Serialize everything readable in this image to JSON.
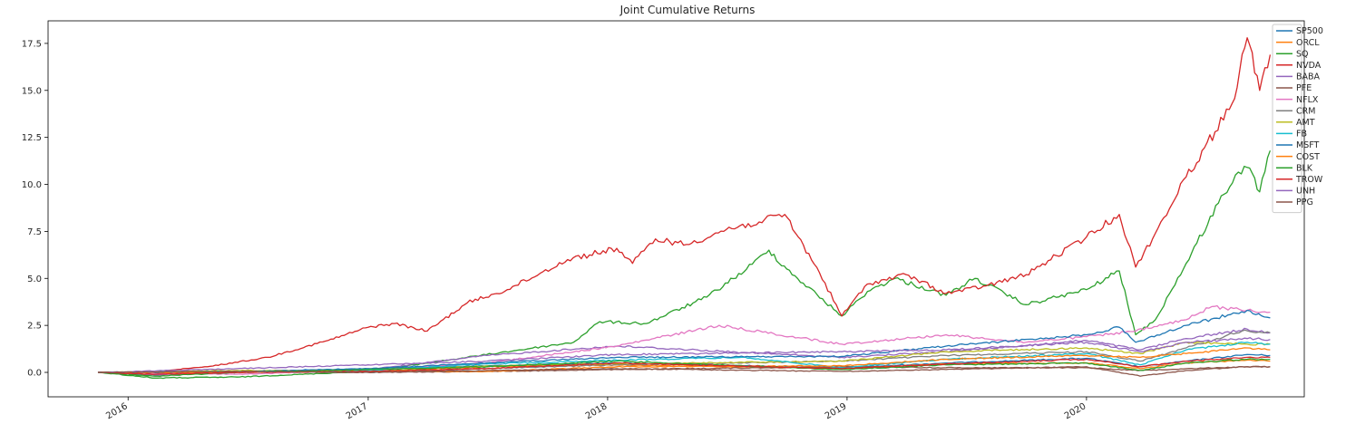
{
  "chart_data": {
    "type": "line",
    "title": "Joint Cumulative Returns",
    "xlabel": "",
    "ylabel": "",
    "xlim": [
      "2015-09-01",
      "2020-11-28"
    ],
    "ylim": [
      -1.3,
      18.7
    ],
    "x_ticks": [
      "2016",
      "2017",
      "2018",
      "2019",
      "2020"
    ],
    "y_ticks": [
      "0.0",
      "2.5",
      "5.0",
      "7.5",
      "10.0",
      "12.5",
      "15.0",
      "17.5"
    ],
    "legend_position": "top-right",
    "grid": false,
    "series": [
      {
        "name": "SP500",
        "color": "#1f77b4",
        "points": [
          [
            "2015-11-16",
            0
          ],
          [
            "2016-06-15",
            0.05
          ],
          [
            "2017-01-01",
            0.2
          ],
          [
            "2017-07-01",
            0.35
          ],
          [
            "2018-01-15",
            0.5
          ],
          [
            "2018-12-24",
            0.25
          ],
          [
            "2019-06-01",
            0.5
          ],
          [
            "2020-01-01",
            0.75
          ],
          [
            "2020-03-23",
            0.3
          ],
          [
            "2020-06-01",
            0.6
          ],
          [
            "2020-09-02",
            0.95
          ],
          [
            "2020-10-07",
            0.9
          ]
        ]
      },
      {
        "name": "ORCL",
        "color": "#ff7f0e",
        "points": [
          [
            "2015-11-16",
            0
          ],
          [
            "2016-02-11",
            -0.1
          ],
          [
            "2016-06-15",
            0.05
          ],
          [
            "2017-01-01",
            0.05
          ],
          [
            "2017-07-01",
            0.3
          ],
          [
            "2018-01-15",
            0.4
          ],
          [
            "2018-12-24",
            0.2
          ],
          [
            "2019-06-01",
            0.45
          ],
          [
            "2020-01-01",
            0.5
          ],
          [
            "2020-03-23",
            0.2
          ],
          [
            "2020-06-01",
            0.5
          ],
          [
            "2020-09-02",
            0.65
          ],
          [
            "2020-10-07",
            0.6
          ]
        ]
      },
      {
        "name": "SQ",
        "color": "#2ca02c",
        "points": [
          [
            "2015-11-19",
            0
          ],
          [
            "2016-02-11",
            -0.3
          ],
          [
            "2016-06-15",
            -0.25
          ],
          [
            "2017-01-01",
            0.05
          ],
          [
            "2017-06-01",
            0.8
          ],
          [
            "2017-11-10",
            1.6
          ],
          [
            "2017-12-20",
            2.7
          ],
          [
            "2018-03-01",
            2.6
          ],
          [
            "2018-06-01",
            4.0
          ],
          [
            "2018-08-01",
            5.5
          ],
          [
            "2018-09-04",
            6.5
          ],
          [
            "2018-10-01",
            5.5
          ],
          [
            "2018-12-24",
            3.0
          ],
          [
            "2019-02-01",
            4.3
          ],
          [
            "2019-03-15",
            5.0
          ],
          [
            "2019-06-01",
            4.1
          ],
          [
            "2019-07-15",
            5.0
          ],
          [
            "2019-10-01",
            3.6
          ],
          [
            "2020-01-01",
            4.4
          ],
          [
            "2020-02-20",
            5.4
          ],
          [
            "2020-03-16",
            2.0
          ],
          [
            "2020-04-15",
            2.8
          ],
          [
            "2020-06-01",
            5.8
          ],
          [
            "2020-07-20",
            9.0
          ],
          [
            "2020-08-15",
            10.5
          ],
          [
            "2020-09-02",
            10.9
          ],
          [
            "2020-09-21",
            9.6
          ],
          [
            "2020-10-07",
            11.8
          ]
        ]
      },
      {
        "name": "NVDA",
        "color": "#d62728",
        "points": [
          [
            "2015-11-16",
            0
          ],
          [
            "2016-01-15",
            -0.05
          ],
          [
            "2016-05-01",
            0.3
          ],
          [
            "2016-08-01",
            0.8
          ],
          [
            "2016-11-01",
            1.7
          ],
          [
            "2017-01-01",
            2.4
          ],
          [
            "2017-02-10",
            2.6
          ],
          [
            "2017-04-01",
            2.2
          ],
          [
            "2017-06-01",
            3.7
          ],
          [
            "2017-08-01",
            4.4
          ],
          [
            "2017-11-01",
            6.0
          ],
          [
            "2018-01-15",
            6.6
          ],
          [
            "2018-02-08",
            5.8
          ],
          [
            "2018-03-15",
            7.1
          ],
          [
            "2018-05-01",
            6.8
          ],
          [
            "2018-07-01",
            7.6
          ],
          [
            "2018-08-20",
            8.0
          ],
          [
            "2018-09-28",
            8.4
          ],
          [
            "2018-11-20",
            5.3
          ],
          [
            "2018-12-24",
            3.0
          ],
          [
            "2019-02-01",
            4.7
          ],
          [
            "2019-04-01",
            5.2
          ],
          [
            "2019-06-01",
            4.2
          ],
          [
            "2019-08-01",
            4.6
          ],
          [
            "2019-10-01",
            5.2
          ],
          [
            "2020-01-01",
            7.2
          ],
          [
            "2020-02-20",
            8.4
          ],
          [
            "2020-03-16",
            5.6
          ],
          [
            "2020-04-15",
            7.4
          ],
          [
            "2020-06-01",
            10.4
          ],
          [
            "2020-07-15",
            12.8
          ],
          [
            "2020-08-10",
            14.3
          ],
          [
            "2020-09-02",
            17.8
          ],
          [
            "2020-09-21",
            15.0
          ],
          [
            "2020-10-07",
            16.9
          ]
        ]
      },
      {
        "name": "BABA",
        "color": "#9467bd",
        "points": [
          [
            "2015-11-16",
            0
          ],
          [
            "2016-02-11",
            -0.15
          ],
          [
            "2016-06-15",
            0.05
          ],
          [
            "2017-01-01",
            0.15
          ],
          [
            "2017-07-01",
            0.9
          ],
          [
            "2018-01-15",
            1.4
          ],
          [
            "2018-12-24",
            0.8
          ],
          [
            "2019-06-01",
            1.1
          ],
          [
            "2020-01-01",
            1.7
          ],
          [
            "2020-03-23",
            1.2
          ],
          [
            "2020-06-01",
            1.8
          ],
          [
            "2020-09-02",
            2.3
          ],
          [
            "2020-10-07",
            2.1
          ]
        ]
      },
      {
        "name": "PFE",
        "color": "#8c564b",
        "points": [
          [
            "2015-11-16",
            0
          ],
          [
            "2016-06-15",
            0.05
          ],
          [
            "2017-01-01",
            0.0
          ],
          [
            "2017-07-01",
            0.05
          ],
          [
            "2018-01-15",
            0.15
          ],
          [
            "2018-12-24",
            0.3
          ],
          [
            "2019-06-01",
            0.25
          ],
          [
            "2020-01-01",
            0.25
          ],
          [
            "2020-03-23",
            0.1
          ],
          [
            "2020-06-01",
            0.2
          ],
          [
            "2020-09-02",
            0.3
          ],
          [
            "2020-10-07",
            0.3
          ]
        ]
      },
      {
        "name": "NFLX",
        "color": "#e377c2",
        "points": [
          [
            "2015-11-16",
            0
          ],
          [
            "2016-06-15",
            -0.1
          ],
          [
            "2017-01-01",
            0.1
          ],
          [
            "2017-07-01",
            0.5
          ],
          [
            "2018-01-15",
            1.4
          ],
          [
            "2018-06-20",
            2.5
          ],
          [
            "2018-12-24",
            1.5
          ],
          [
            "2019-06-01",
            2.0
          ],
          [
            "2019-10-01",
            1.6
          ],
          [
            "2020-01-01",
            1.9
          ],
          [
            "2020-03-16",
            2.2
          ],
          [
            "2020-06-01",
            2.8
          ],
          [
            "2020-07-10",
            3.5
          ],
          [
            "2020-09-02",
            3.3
          ],
          [
            "2020-10-07",
            3.2
          ]
        ]
      },
      {
        "name": "CRM",
        "color": "#7f7f7f",
        "points": [
          [
            "2015-11-16",
            0
          ],
          [
            "2016-06-15",
            0.05
          ],
          [
            "2017-01-01",
            0.0
          ],
          [
            "2017-07-01",
            0.2
          ],
          [
            "2018-01-15",
            0.4
          ],
          [
            "2018-12-24",
            0.6
          ],
          [
            "2019-06-01",
            0.9
          ],
          [
            "2020-01-01",
            1.1
          ],
          [
            "2020-03-23",
            0.6
          ],
          [
            "2020-06-01",
            1.3
          ],
          [
            "2020-08-25",
            2.2
          ],
          [
            "2020-10-07",
            2.1
          ]
        ]
      },
      {
        "name": "AMT",
        "color": "#bcbd22",
        "points": [
          [
            "2015-11-16",
            0
          ],
          [
            "2016-06-15",
            0.1
          ],
          [
            "2017-01-01",
            0.05
          ],
          [
            "2017-07-01",
            0.35
          ],
          [
            "2018-01-15",
            0.45
          ],
          [
            "2018-12-24",
            0.6
          ],
          [
            "2019-06-01",
            1.1
          ],
          [
            "2020-01-01",
            1.3
          ],
          [
            "2020-03-23",
            1.0
          ],
          [
            "2020-06-01",
            1.6
          ],
          [
            "2020-09-02",
            1.5
          ],
          [
            "2020-10-07",
            1.5
          ]
        ]
      },
      {
        "name": "FB",
        "color": "#17becf",
        "points": [
          [
            "2015-11-16",
            0
          ],
          [
            "2016-06-15",
            0.05
          ],
          [
            "2017-01-01",
            0.1
          ],
          [
            "2017-07-01",
            0.45
          ],
          [
            "2018-01-15",
            0.65
          ],
          [
            "2018-07-25",
            0.8
          ],
          [
            "2018-12-24",
            0.25
          ],
          [
            "2019-06-01",
            0.7
          ],
          [
            "2020-01-01",
            1.0
          ],
          [
            "2020-03-23",
            0.4
          ],
          [
            "2020-06-01",
            1.2
          ],
          [
            "2020-09-02",
            1.6
          ],
          [
            "2020-10-07",
            1.5
          ]
        ]
      },
      {
        "name": "MSFT",
        "color": "#1f77b4",
        "points": [
          [
            "2015-11-16",
            0
          ],
          [
            "2016-06-15",
            0.0
          ],
          [
            "2017-01-01",
            0.2
          ],
          [
            "2017-07-01",
            0.5
          ],
          [
            "2018-01-15",
            0.8
          ],
          [
            "2018-12-24",
            0.85
          ],
          [
            "2019-06-01",
            1.4
          ],
          [
            "2020-01-01",
            2.0
          ],
          [
            "2020-02-20",
            2.4
          ],
          [
            "2020-03-16",
            1.6
          ],
          [
            "2020-06-01",
            2.5
          ],
          [
            "2020-09-02",
            3.3
          ],
          [
            "2020-10-07",
            2.9
          ]
        ]
      },
      {
        "name": "COST",
        "color": "#ff7f0e",
        "points": [
          [
            "2015-11-16",
            0
          ],
          [
            "2016-06-15",
            0.0
          ],
          [
            "2017-01-01",
            0.05
          ],
          [
            "2017-07-01",
            0.05
          ],
          [
            "2018-01-15",
            0.3
          ],
          [
            "2018-12-24",
            0.35
          ],
          [
            "2019-06-01",
            0.7
          ],
          [
            "2020-01-01",
            0.9
          ],
          [
            "2020-03-23",
            0.8
          ],
          [
            "2020-06-01",
            1.0
          ],
          [
            "2020-09-02",
            1.3
          ],
          [
            "2020-10-07",
            1.2
          ]
        ]
      },
      {
        "name": "BLK",
        "color": "#2ca02c",
        "points": [
          [
            "2015-11-16",
            0
          ],
          [
            "2016-02-11",
            -0.2
          ],
          [
            "2016-06-15",
            0.0
          ],
          [
            "2017-01-01",
            0.15
          ],
          [
            "2017-07-01",
            0.3
          ],
          [
            "2018-01-15",
            0.6
          ],
          [
            "2018-12-24",
            0.15
          ],
          [
            "2019-06-01",
            0.4
          ],
          [
            "2020-01-01",
            0.5
          ],
          [
            "2020-03-23",
            0.1
          ],
          [
            "2020-06-01",
            0.5
          ],
          [
            "2020-09-02",
            0.7
          ],
          [
            "2020-10-07",
            0.7
          ]
        ]
      },
      {
        "name": "TROW",
        "color": "#d62728",
        "points": [
          [
            "2015-11-16",
            0
          ],
          [
            "2016-02-11",
            -0.1
          ],
          [
            "2016-06-15",
            0.0
          ],
          [
            "2017-01-01",
            0.05
          ],
          [
            "2017-07-01",
            0.2
          ],
          [
            "2018-01-15",
            0.5
          ],
          [
            "2018-12-24",
            0.2
          ],
          [
            "2019-06-01",
            0.45
          ],
          [
            "2020-01-01",
            0.7
          ],
          [
            "2020-03-23",
            0.3
          ],
          [
            "2020-06-01",
            0.6
          ],
          [
            "2020-09-02",
            0.8
          ],
          [
            "2020-10-07",
            0.8
          ]
        ]
      },
      {
        "name": "UNH",
        "color": "#9467bd",
        "points": [
          [
            "2015-11-16",
            0
          ],
          [
            "2016-06-15",
            0.2
          ],
          [
            "2017-01-01",
            0.4
          ],
          [
            "2017-07-01",
            0.6
          ],
          [
            "2018-01-15",
            0.95
          ],
          [
            "2018-12-24",
            1.1
          ],
          [
            "2019-06-01",
            1.2
          ],
          [
            "2020-01-01",
            1.6
          ],
          [
            "2020-03-23",
            1.1
          ],
          [
            "2020-06-01",
            1.6
          ],
          [
            "2020-09-02",
            1.8
          ],
          [
            "2020-10-07",
            1.75
          ]
        ]
      },
      {
        "name": "PPG",
        "color": "#8c564b",
        "points": [
          [
            "2015-11-16",
            0
          ],
          [
            "2016-06-15",
            0.05
          ],
          [
            "2017-01-01",
            0.0
          ],
          [
            "2017-07-01",
            0.1
          ],
          [
            "2018-01-15",
            0.2
          ],
          [
            "2018-12-24",
            0.05
          ],
          [
            "2019-06-01",
            0.15
          ],
          [
            "2020-01-01",
            0.3
          ],
          [
            "2020-03-23",
            -0.2
          ],
          [
            "2020-06-01",
            0.1
          ],
          [
            "2020-09-02",
            0.3
          ],
          [
            "2020-10-07",
            0.3
          ]
        ]
      }
    ]
  }
}
